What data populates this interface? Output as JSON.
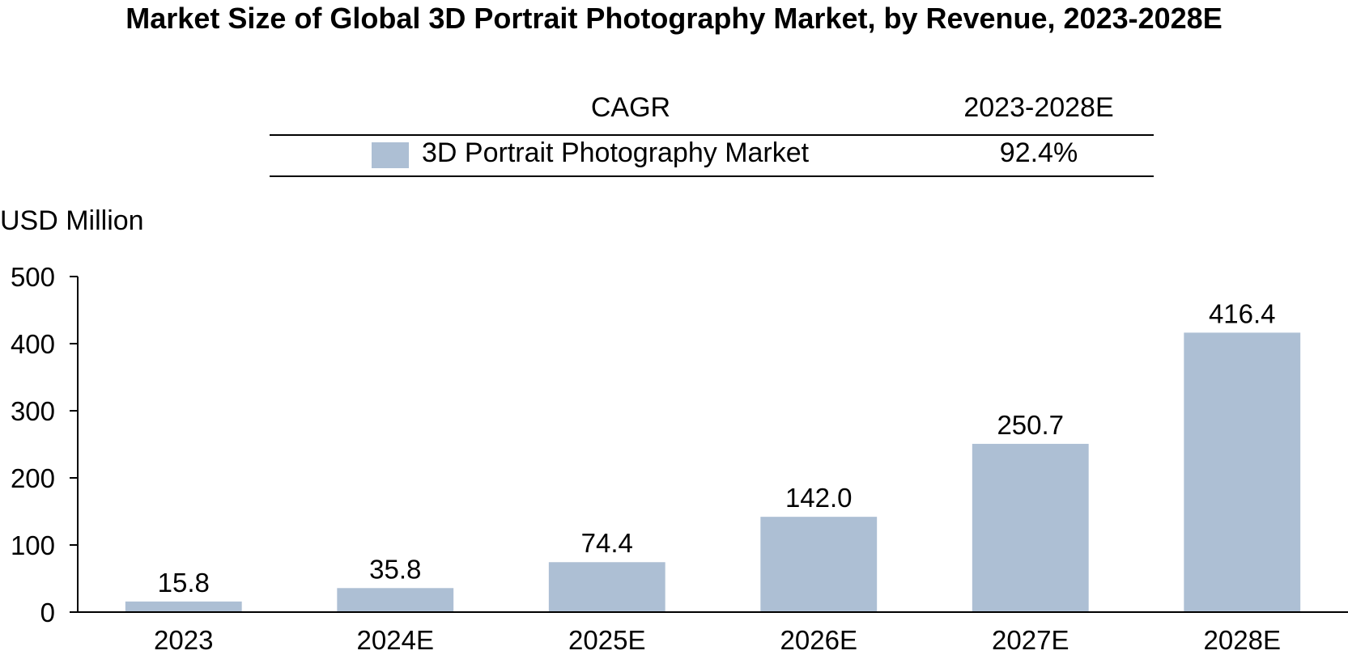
{
  "title": "Market Size of Global 3D Portrait Photography Market, by Revenue, 2023-2028E",
  "cagr_table": {
    "header_label": "CAGR",
    "header_period": "2023-2028E",
    "row_name": "3D Portrait Photography Market",
    "row_value": "92.4%"
  },
  "colors": {
    "bar": "#adbfd4",
    "axis": "#000000"
  },
  "chart_data": {
    "type": "bar",
    "title": "Market Size of Global 3D Portrait Photography Market, by Revenue, 2023-2028E",
    "ylabel": "USD Million",
    "xlabel": "",
    "categories": [
      "2023",
      "2024E",
      "2025E",
      "2026E",
      "2027E",
      "2028E"
    ],
    "series": [
      {
        "name": "3D Portrait Photography Market",
        "values": [
          15.8,
          35.8,
          74.4,
          142.0,
          250.7,
          416.4
        ],
        "labels": [
          "15.8",
          "35.8",
          "74.4",
          "142.0",
          "250.7",
          "416.4"
        ]
      }
    ],
    "ylim": [
      0,
      500
    ],
    "yticks": [
      0,
      100,
      200,
      300,
      400,
      500
    ],
    "grid": false,
    "legend": "top-center table"
  }
}
